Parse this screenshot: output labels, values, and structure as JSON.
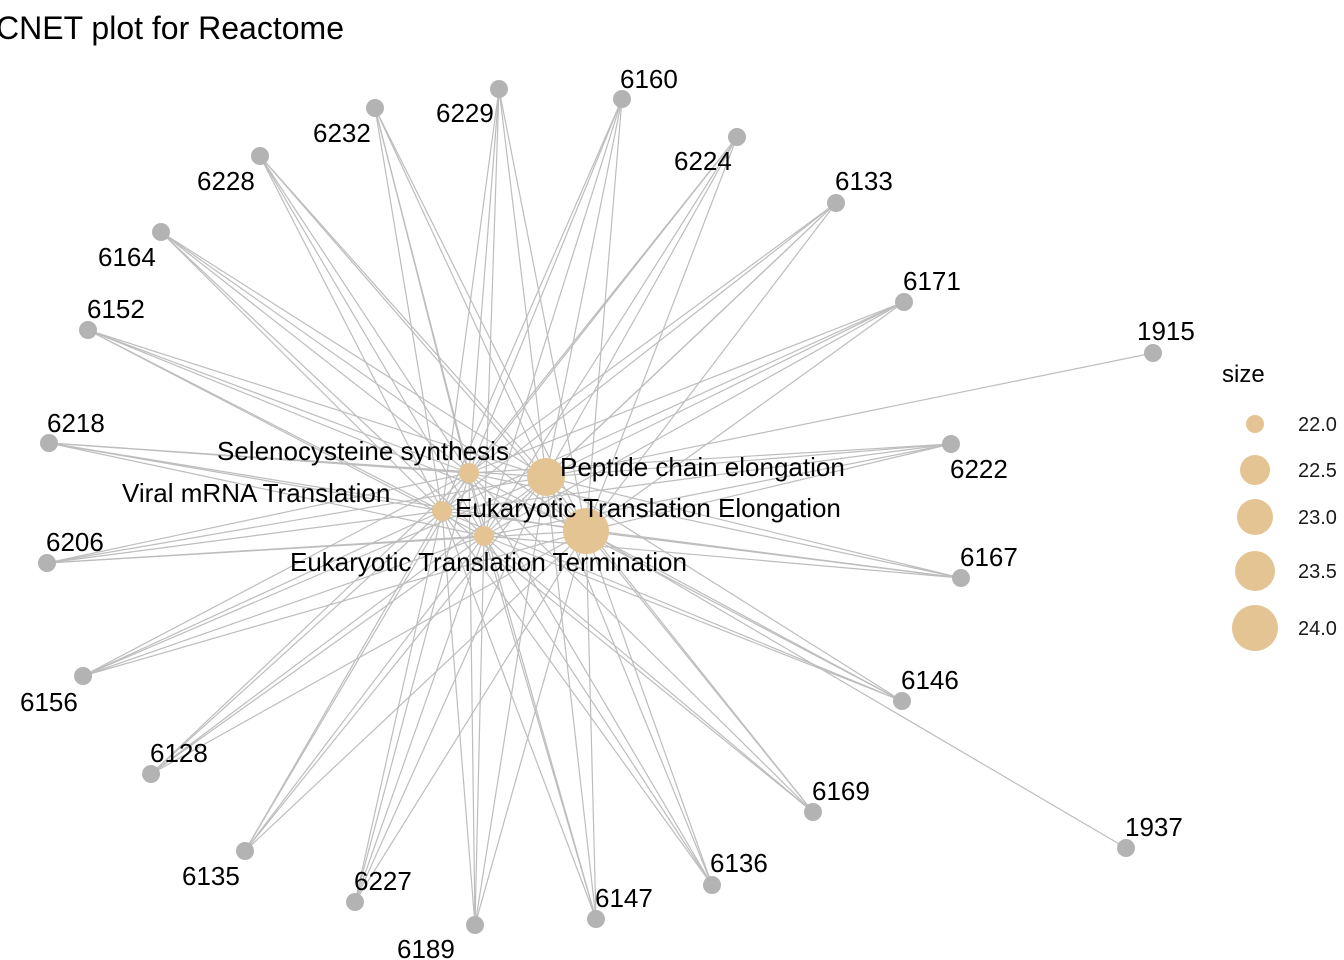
{
  "title": "CNET plot for Reactome",
  "legend": {
    "title": "size",
    "items": [
      "22.0",
      "22.5",
      "23.0",
      "23.5",
      "24.0"
    ],
    "color": "#e5c494"
  },
  "colors": {
    "edge": "#bdbdbd",
    "gene": "#b3b3b3",
    "category": "#e5c494"
  },
  "categories": [
    {
      "name": "Selenocysteine synthesis",
      "size": 22.0
    },
    {
      "name": "Peptide chain elongation",
      "size": 23.5
    },
    {
      "name": "Viral mRNA Translation",
      "size": 22.0
    },
    {
      "name": "Eukaryotic Translation Elongation",
      "size": 24.0
    },
    {
      "name": "Eukaryotic Translation Termination",
      "size": 22.0
    }
  ],
  "genes": [
    "6160",
    "6229",
    "6232",
    "6224",
    "6228",
    "6133",
    "6164",
    "6171",
    "6152",
    "1915",
    "6218",
    "6222",
    "6206",
    "6167",
    "6156",
    "6146",
    "6128",
    "6169",
    "1937",
    "6135",
    "6136",
    "6227",
    "6147",
    "6189"
  ]
}
